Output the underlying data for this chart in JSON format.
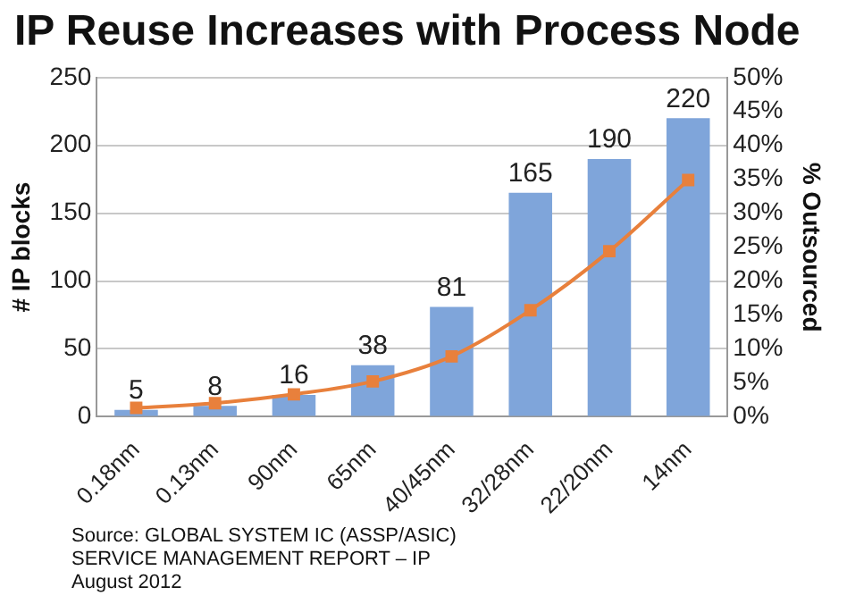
{
  "chart_data": {
    "type": "bar",
    "title": "IP Reuse Increases with Process Node",
    "ylabel": "# IP blocks",
    "y2label": "% Outsourced",
    "categories": [
      "0.18nm",
      "0.13nm",
      "90nm",
      "65nm",
      "40/45nm",
      "32/28nm",
      "22/20nm",
      "14nm"
    ],
    "series": [
      {
        "color": "#7fa5da",
        "values": [
          5,
          8,
          16,
          38,
          81,
          165,
          190,
          220
        ],
        "value_labels": [
          "5",
          "8",
          "16",
          "38",
          "81",
          "165",
          "190",
          "220"
        ]
      },
      {
        "type": "line",
        "axis": "y2",
        "color": "#e8803c",
        "marker": "square",
        "values": [
          1.3,
          2,
          3.3,
          5.2,
          8.9,
          15.7,
          24.4,
          34.9
        ]
      }
    ],
    "ylim": [
      0,
      250
    ],
    "yticks": [
      0,
      50,
      100,
      150,
      200,
      250
    ],
    "y2lim": [
      0,
      50
    ],
    "y2ticks": [
      {
        "value": 0,
        "label": "0%"
      },
      {
        "value": 5,
        "label": "5%"
      },
      {
        "value": 10,
        "label": "10%"
      },
      {
        "value": 15,
        "label": "15%"
      },
      {
        "value": 20,
        "label": "20%"
      },
      {
        "value": 25,
        "label": "25%"
      },
      {
        "value": 30,
        "label": "30%"
      },
      {
        "value": 35,
        "label": "35%"
      },
      {
        "value": 40,
        "label": "40%"
      },
      {
        "value": 45,
        "label": "45%"
      },
      {
        "value": 50,
        "label": "50%"
      }
    ],
    "grid": "y",
    "legend": false,
    "annotations": [
      "Source:  GLOBAL SYSTEM IC (ASSP/ASIC) SERVICE MANAGEMENT REPORT – IP August 2012"
    ]
  }
}
